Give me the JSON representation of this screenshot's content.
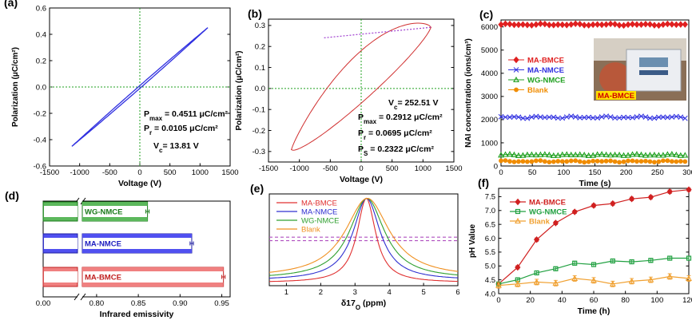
{
  "panels": [
    {
      "id": "a",
      "label": "(a)",
      "type": "line",
      "xlabel": "Voltage (V)",
      "ylabel": "Polarization (μC/cm²)",
      "xlim": [
        -1500,
        1500
      ],
      "ylim": [
        -0.6,
        0.6
      ],
      "xticks": [
        -1500,
        -1000,
        -500,
        0,
        500,
        1000,
        1500
      ],
      "xtick_labels": [
        "-1500",
        "-1000",
        "-500",
        "0",
        "500",
        "1000",
        "1500"
      ],
      "yticks": [
        -0.6,
        -0.4,
        -0.2,
        0.0,
        0.2,
        0.4,
        0.6
      ],
      "ytick_labels": [
        "-0.6",
        "-0.4",
        "-0.2",
        "0.0",
        "0.2",
        "0.4",
        "0.6"
      ],
      "crosshair": {
        "x": 0,
        "y": 0
      },
      "color": "#3030e0",
      "loop": {
        "vmax": 1130,
        "pmax": 0.4511,
        "pr": 0.0105,
        "vc": 13.81
      },
      "annotations": [
        "P_max = 0.4511 μC/cm²",
        "P_r = 0.0105 μC/cm²",
        "V_c= 13.81 V"
      ]
    },
    {
      "id": "b",
      "label": "(b)",
      "type": "line",
      "xlabel": "Voltage (V)",
      "ylabel": "Polarization (μC/cm²)",
      "xlim": [
        -1500,
        1500
      ],
      "ylim": [
        -0.35,
        0.33
      ],
      "xticks": [
        -1500,
        -1000,
        -500,
        0,
        500,
        1000,
        1500
      ],
      "xtick_labels": [
        "-1500",
        "-1000",
        "-500",
        "0",
        "500",
        "1000",
        "1500"
      ],
      "yticks": [
        -0.3,
        -0.2,
        -0.1,
        0.0,
        0.1,
        0.2,
        0.3
      ],
      "ytick_labels": [
        "-0.3",
        "-0.2",
        "-0.1",
        "0.0",
        "0.1",
        "0.2",
        "0.3"
      ],
      "crosshair": {
        "x": 0,
        "y": 0
      },
      "color": "#d03030",
      "tangent_color": "#a040d0",
      "loop": {
        "vmax": 1130,
        "pmax": 0.2912,
        "pr": 0.0695,
        "vc": 252.51,
        "ps": 0.2322
      },
      "tangent": {
        "x": [
          -600,
          1130
        ],
        "y": [
          0.2412,
          0.2912
        ]
      },
      "annotations": [
        "V_c= 252.51 V",
        "P_max = 0.2912 μC/cm²",
        "P_r = 0.0695 μC/cm²",
        "P_S = 0.2322 μC/cm²"
      ]
    },
    {
      "id": "c",
      "label": "(c)",
      "type": "line",
      "xlabel": "Time (s)",
      "ylabel": "NAI concentration (ions/cm³)",
      "xlim": [
        0,
        300
      ],
      "ylim": [
        0,
        6300
      ],
      "xticks": [
        0,
        50,
        100,
        150,
        200,
        250,
        300
      ],
      "xtick_labels": [
        "0",
        "50",
        "100",
        "150",
        "200",
        "250",
        "300"
      ],
      "yticks": [
        0,
        1000,
        2000,
        3000,
        4000,
        5000,
        6000
      ],
      "ytick_labels": [
        "0",
        "1000",
        "2000",
        "3000",
        "4000",
        "5000",
        "6000"
      ],
      "series": [
        {
          "name": "MA-BMCE",
          "color": "#e02020",
          "marker": "diamond",
          "level": 6100,
          "amp": 40
        },
        {
          "name": "MA-NMCE",
          "color": "#3030e0",
          "marker": "x",
          "level": 2100,
          "amp": 50
        },
        {
          "name": "WG-NMCE",
          "color": "#20a020",
          "marker": "triangle",
          "level": 480,
          "amp": 35
        },
        {
          "name": "Blank",
          "color": "#f08c00",
          "marker": "circle",
          "level": 200,
          "amp": 40
        }
      ],
      "photo": {
        "caption": "MA-BMCE",
        "caption_bg": "#ffe000",
        "caption_color": "#d00000"
      }
    },
    {
      "id": "d",
      "label": "(d)",
      "type": "bar",
      "orientation": "horizontal",
      "xlabel": "Infrared emissivity",
      "xlim": [
        0.0,
        0.96
      ],
      "xticks": [
        0.0,
        0.8,
        0.85,
        0.9,
        0.95
      ],
      "xtick_labels": [
        "0.00",
        "0.80",
        "0.85",
        "0.90",
        "0.95"
      ],
      "axis_break": true,
      "bars": [
        {
          "name": "WG-NMCE",
          "value": 0.861,
          "err": 0.002,
          "fill": "#5cb85c",
          "edge": "#1a7a1a",
          "text_color": "#1a7a1a"
        },
        {
          "name": "MA-NMCE",
          "value": 0.914,
          "err": 0.002,
          "fill": "#5050f0",
          "edge": "#2020a0",
          "text_color": "#2020c0"
        },
        {
          "name": "MA-BMCE",
          "value": 0.952,
          "err": 0.002,
          "fill": "#f08080",
          "edge": "#c02020",
          "text_color": "#c02020"
        }
      ]
    },
    {
      "id": "e",
      "label": "(e)",
      "type": "line",
      "xlabel": "δ17O (ppm)",
      "xlim": [
        0.5,
        6
      ],
      "ylim": [
        0,
        1.05
      ],
      "xticks": [
        1,
        2,
        3,
        4,
        5,
        6
      ],
      "xtick_labels": [
        "1",
        "2",
        "3",
        "4",
        "5",
        "6"
      ],
      "hlines": [
        0.555,
        0.515
      ],
      "hline_color": "#b050c0",
      "series": [
        {
          "name": "MA-BMCE",
          "color": "#e03030",
          "center": 3.33,
          "hwhm": 0.33,
          "base": 0.035
        },
        {
          "name": "MA-NMCE",
          "color": "#3030d0",
          "center": 3.34,
          "hwhm": 0.48,
          "base": 0.06
        },
        {
          "name": "WG-NMCE",
          "color": "#30a030",
          "center": 3.35,
          "hwhm": 0.62,
          "base": 0.075
        },
        {
          "name": "Blank",
          "color": "#f09020",
          "center": 3.36,
          "hwhm": 0.78,
          "base": 0.09
        }
      ]
    },
    {
      "id": "f",
      "label": "(f)",
      "type": "line",
      "xlabel": "Time (h)",
      "ylabel": "pH Value",
      "xlim": [
        0,
        120
      ],
      "ylim": [
        4.0,
        7.8
      ],
      "xticks": [
        0,
        20,
        40,
        60,
        80,
        100,
        120
      ],
      "xtick_labels": [
        "0",
        "20",
        "40",
        "60",
        "80",
        "100",
        "120"
      ],
      "yticks": [
        4.0,
        4.5,
        5.0,
        5.5,
        6.0,
        6.5,
        7.0,
        7.5
      ],
      "ytick_labels": [
        "4.0",
        "4.5",
        "5.0",
        "5.5",
        "6.0",
        "6.5",
        "7.0",
        "7.5"
      ],
      "x": [
        0,
        12,
        24,
        36,
        48,
        60,
        72,
        84,
        96,
        108,
        120
      ],
      "series": [
        {
          "name": "MA-BMCE",
          "color": "#d02020",
          "marker": "diamond",
          "values": [
            4.35,
            4.95,
            5.95,
            6.55,
            6.95,
            7.18,
            7.25,
            7.42,
            7.48,
            7.68,
            7.75
          ],
          "err": 0.06
        },
        {
          "name": "WG-NMCE",
          "color": "#20a040",
          "marker": "square",
          "values": [
            4.35,
            4.5,
            4.75,
            4.9,
            5.1,
            5.05,
            5.18,
            5.15,
            5.2,
            5.28,
            5.28
          ],
          "err": 0.07
        },
        {
          "name": "Blank",
          "color": "#f0a030",
          "marker": "triangle",
          "values": [
            4.3,
            4.35,
            4.42,
            4.38,
            4.55,
            4.48,
            4.35,
            4.45,
            4.5,
            4.62,
            4.55
          ],
          "err": 0.1
        }
      ]
    }
  ]
}
